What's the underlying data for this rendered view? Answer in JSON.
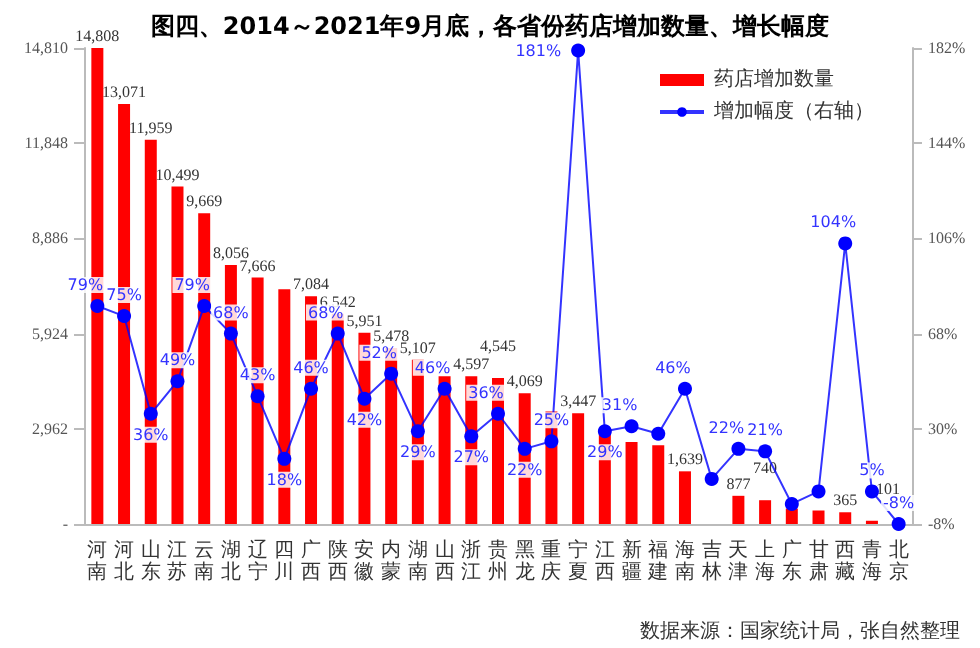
{
  "chart_data": {
    "type": "bar",
    "title": "图四、2014～2021年9月底，各省份药店增加数量、增长幅度",
    "categories": [
      "河南",
      "河北",
      "山东",
      "江苏",
      "云南",
      "湖北",
      "辽宁",
      "四川",
      "广西",
      "陕西",
      "安徽",
      "内蒙",
      "湖南",
      "山西",
      "浙江",
      "贵州",
      "黑龙",
      "重庆",
      "宁夏",
      "江西",
      "新疆",
      "福建",
      "海南",
      "吉林",
      "天津",
      "上海",
      "广东",
      "甘肃",
      "西藏",
      "青海",
      "北京"
    ],
    "series": [
      {
        "name": "药店增加数量",
        "color": "#ff0000",
        "values": [
          14808,
          13071,
          11959,
          10499,
          9669,
          8056,
          7666,
          7300,
          7084,
          6542,
          5951,
          5478,
          5107,
          4600,
          4597,
          4545,
          4069,
          3500,
          3447,
          2950,
          2550,
          2450,
          1639,
          null,
          877,
          740,
          480,
          420,
          365,
          101,
          null
        ],
        "value_labels": [
          "14,808",
          "13,071",
          "11,959",
          "10,499",
          "9,669",
          "8,056",
          "7,666",
          null,
          "7,084",
          "6,542",
          "5,951",
          "5,478",
          "5,107",
          null,
          "4,597",
          "4,545",
          "4,069",
          null,
          "3,447",
          null,
          null,
          null,
          "1,639",
          null,
          "877",
          "740",
          null,
          null,
          "365",
          "101",
          null
        ]
      },
      {
        "name": "增加幅度（右轴）",
        "type": "line",
        "axis": "y2",
        "color": "#0000ff",
        "marker": "circle",
        "values": [
          79,
          75,
          36,
          49,
          79,
          68,
          43,
          18,
          46,
          68,
          42,
          52,
          29,
          46,
          27,
          36,
          22,
          25,
          181,
          29,
          31,
          28,
          46,
          10,
          22,
          21,
          0,
          5,
          104,
          5,
          -8
        ],
        "value_labels": [
          "79%",
          "75%",
          "36%",
          "49%",
          "79%",
          "68%",
          "43%",
          "18%",
          "46%",
          "68%",
          "42%",
          "52%",
          "29%",
          "46%",
          "27%",
          "36%",
          "22%",
          "25%",
          "181%",
          "29%",
          "31%",
          null,
          "46%",
          null,
          "22%",
          "21%",
          null,
          null,
          "104%",
          "5%",
          "-8%"
        ]
      }
    ],
    "ylim": [
      0,
      14810
    ],
    "yticks": [
      {
        "value": 0,
        "label": "-"
      },
      {
        "value": 2962,
        "label": "2,962"
      },
      {
        "value": 5924,
        "label": "5,924"
      },
      {
        "value": 8886,
        "label": "8,886"
      },
      {
        "value": 11848,
        "label": "11,848"
      },
      {
        "value": 14810,
        "label": "14,810"
      }
    ],
    "y2lim": [
      -8,
      182
    ],
    "y2ticks": [
      {
        "value": -8,
        "label": "-8%"
      },
      {
        "value": 30,
        "label": "30%"
      },
      {
        "value": 68,
        "label": "68%"
      },
      {
        "value": 106,
        "label": "106%"
      },
      {
        "value": 144,
        "label": "144%"
      },
      {
        "value": 182,
        "label": "182%"
      }
    ],
    "legend": "top right",
    "grid": false,
    "annotations": [
      "数据来源：国家统计局，张自然整理"
    ]
  }
}
